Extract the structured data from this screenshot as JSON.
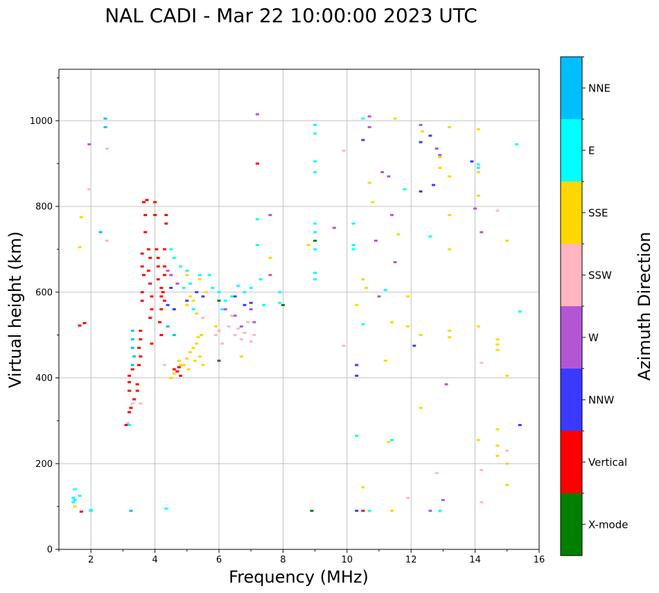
{
  "chart_data": {
    "type": "scatter",
    "title": "NAL CADI - Mar 22 10:00:00 2023 UTC",
    "xlabel": "Frequency (MHz)",
    "ylabel": "Virtual height (km)",
    "xlim": [
      1,
      16
    ],
    "ylim": [
      0,
      1120
    ],
    "xticks": [
      2,
      4,
      6,
      8,
      10,
      12,
      14,
      16
    ],
    "yticks": [
      0,
      200,
      400,
      600,
      800,
      1000
    ],
    "grid": true,
    "colorbar": {
      "label": "Azimuth Direction",
      "categories": [
        {
          "name": "X-mode",
          "color": "#008000"
        },
        {
          "name": "Vertical",
          "color": "#ff0000"
        },
        {
          "name": "NNW",
          "color": "#3a3aff"
        },
        {
          "name": "W",
          "color": "#b455d6"
        },
        {
          "name": "SSW",
          "color": "#ffb6c1"
        },
        {
          "name": "SSE",
          "color": "#ffd700"
        },
        {
          "name": "E",
          "color": "#00ffff"
        },
        {
          "name": "NNE",
          "color": "#00bfff"
        }
      ]
    },
    "series": [
      {
        "name": "X-mode",
        "points": [
          [
            6.0,
            440
          ],
          [
            6.0,
            580
          ],
          [
            8.9,
            90
          ],
          [
            9.0,
            720
          ],
          [
            8.0,
            570
          ]
        ]
      },
      {
        "name": "Vertical",
        "points": [
          [
            1.65,
            522
          ],
          [
            1.8,
            528
          ],
          [
            1.7,
            88
          ],
          [
            3.1,
            290
          ],
          [
            3.2,
            320
          ],
          [
            3.25,
            330
          ],
          [
            3.2,
            370
          ],
          [
            3.2,
            390
          ],
          [
            3.2,
            405
          ],
          [
            3.3,
            420
          ],
          [
            3.35,
            350
          ],
          [
            3.45,
            370
          ],
          [
            3.45,
            385
          ],
          [
            3.5,
            430
          ],
          [
            3.55,
            450
          ],
          [
            3.5,
            470
          ],
          [
            3.55,
            490
          ],
          [
            3.55,
            510
          ],
          [
            3.6,
            580
          ],
          [
            3.6,
            600
          ],
          [
            3.65,
            640
          ],
          [
            3.6,
            660
          ],
          [
            3.6,
            690
          ],
          [
            3.7,
            740
          ],
          [
            3.7,
            780
          ],
          [
            3.65,
            810
          ],
          [
            3.75,
            815
          ],
          [
            3.8,
            700
          ],
          [
            3.85,
            680
          ],
          [
            3.8,
            650
          ],
          [
            3.85,
            620
          ],
          [
            3.9,
            590
          ],
          [
            3.9,
            560
          ],
          [
            3.85,
            540
          ],
          [
            3.9,
            480
          ],
          [
            4.0,
            810
          ],
          [
            4.0,
            780
          ],
          [
            4.05,
            700
          ],
          [
            4.1,
            680
          ],
          [
            4.1,
            660
          ],
          [
            4.1,
            630
          ],
          [
            4.2,
            610
          ],
          [
            4.2,
            590
          ],
          [
            4.2,
            560
          ],
          [
            4.15,
            530
          ],
          [
            4.2,
            500
          ],
          [
            4.3,
            700
          ],
          [
            4.3,
            660
          ],
          [
            4.3,
            640
          ],
          [
            4.35,
            780
          ],
          [
            4.35,
            760
          ],
          [
            4.25,
            600
          ],
          [
            4.3,
            580
          ],
          [
            4.6,
            420
          ],
          [
            4.7,
            415
          ],
          [
            4.75,
            425
          ],
          [
            4.8,
            405
          ],
          [
            7.2,
            900
          ],
          [
            10.5,
            90
          ]
        ]
      },
      {
        "name": "NNW",
        "points": [
          [
            4.4,
            570
          ],
          [
            4.5,
            610
          ],
          [
            4.6,
            560
          ],
          [
            5.0,
            580
          ],
          [
            5.3,
            600
          ],
          [
            5.5,
            590
          ],
          [
            6.5,
            590
          ],
          [
            6.8,
            570
          ],
          [
            7.0,
            575
          ],
          [
            10.3,
            430
          ],
          [
            10.3,
            405
          ],
          [
            10.5,
            955
          ],
          [
            10.3,
            90
          ],
          [
            12.3,
            950
          ],
          [
            12.6,
            965
          ],
          [
            12.7,
            850
          ],
          [
            12.3,
            835
          ],
          [
            12.1,
            475
          ],
          [
            13.9,
            905
          ],
          [
            15.4,
            290
          ]
        ]
      },
      {
        "name": "W",
        "points": [
          [
            1.95,
            945
          ],
          [
            4.4,
            650
          ],
          [
            4.5,
            640
          ],
          [
            4.7,
            620
          ],
          [
            6.2,
            560
          ],
          [
            6.5,
            545
          ],
          [
            6.7,
            520
          ],
          [
            7.0,
            560
          ],
          [
            7.1,
            530
          ],
          [
            7.2,
            1015
          ],
          [
            7.6,
            640
          ],
          [
            7.6,
            780
          ],
          [
            9.6,
            750
          ],
          [
            10.7,
            1010
          ],
          [
            10.7,
            985
          ],
          [
            11.1,
            880
          ],
          [
            11.3,
            870
          ],
          [
            11.4,
            780
          ],
          [
            11.5,
            670
          ],
          [
            11.0,
            590
          ],
          [
            10.9,
            720
          ],
          [
            12.3,
            990
          ],
          [
            12.8,
            935
          ],
          [
            12.9,
            920
          ],
          [
            12.6,
            90
          ],
          [
            13.0,
            115
          ],
          [
            13.1,
            385
          ],
          [
            14.0,
            795
          ],
          [
            14.2,
            740
          ]
        ]
      },
      {
        "name": "SSW",
        "points": [
          [
            1.95,
            840
          ],
          [
            2.5,
            720
          ],
          [
            2.5,
            935
          ],
          [
            3.15,
            295
          ],
          [
            3.3,
            340
          ],
          [
            3.55,
            340
          ],
          [
            4.3,
            430
          ],
          [
            5.5,
            540
          ],
          [
            5.9,
            500
          ],
          [
            6.0,
            510
          ],
          [
            6.1,
            480
          ],
          [
            6.3,
            520
          ],
          [
            6.4,
            545
          ],
          [
            6.5,
            500
          ],
          [
            6.6,
            515
          ],
          [
            6.7,
            490
          ],
          [
            6.8,
            505
          ],
          [
            6.9,
            530
          ],
          [
            7.0,
            485
          ],
          [
            7.1,
            500
          ],
          [
            9.9,
            930
          ],
          [
            9.9,
            475
          ],
          [
            12.8,
            178
          ],
          [
            14.2,
            185
          ],
          [
            14.2,
            435
          ],
          [
            14.2,
            110
          ],
          [
            14.7,
            790
          ],
          [
            15.0,
            230
          ],
          [
            11.9,
            120
          ]
        ]
      },
      {
        "name": "SSE",
        "points": [
          [
            1.7,
            775
          ],
          [
            1.65,
            705
          ],
          [
            1.5,
            100
          ],
          [
            4.5,
            400
          ],
          [
            4.6,
            410
          ],
          [
            4.75,
            440
          ],
          [
            4.8,
            430
          ],
          [
            4.9,
            430
          ],
          [
            5.0,
            445
          ],
          [
            5.05,
            420
          ],
          [
            5.1,
            460
          ],
          [
            5.2,
            470
          ],
          [
            5.25,
            440
          ],
          [
            5.3,
            480
          ],
          [
            5.35,
            495
          ],
          [
            5.4,
            450
          ],
          [
            5.45,
            500
          ],
          [
            5.5,
            430
          ],
          [
            5.0,
            570
          ],
          [
            5.1,
            590
          ],
          [
            5.2,
            560
          ],
          [
            5.0,
            640
          ],
          [
            5.1,
            620
          ],
          [
            5.2,
            580
          ],
          [
            5.3,
            550
          ],
          [
            5.4,
            630
          ],
          [
            5.6,
            600
          ],
          [
            5.9,
            520
          ],
          [
            6.7,
            450
          ],
          [
            7.6,
            680
          ],
          [
            8.8,
            710
          ],
          [
            10.3,
            570
          ],
          [
            10.5,
            630
          ],
          [
            10.6,
            610
          ],
          [
            10.5,
            145
          ],
          [
            10.7,
            855
          ],
          [
            10.8,
            810
          ],
          [
            11.2,
            440
          ],
          [
            11.3,
            250
          ],
          [
            11.4,
            530
          ],
          [
            11.4,
            90
          ],
          [
            11.5,
            1005
          ],
          [
            11.6,
            735
          ],
          [
            11.9,
            520
          ],
          [
            11.9,
            590
          ],
          [
            12.3,
            500
          ],
          [
            12.3,
            330
          ],
          [
            12.35,
            975
          ],
          [
            12.9,
            890
          ],
          [
            12.9,
            915
          ],
          [
            13.2,
            870
          ],
          [
            13.2,
            780
          ],
          [
            13.2,
            700
          ],
          [
            13.2,
            510
          ],
          [
            13.2,
            495
          ],
          [
            13.2,
            985
          ],
          [
            14.1,
            980
          ],
          [
            14.1,
            880
          ],
          [
            14.1,
            825
          ],
          [
            14.1,
            255
          ],
          [
            14.1,
            520
          ],
          [
            14.7,
            280
          ],
          [
            14.7,
            490
          ],
          [
            14.7,
            478
          ],
          [
            14.7,
            465
          ],
          [
            14.7,
            242
          ],
          [
            14.7,
            218
          ],
          [
            15.0,
            720
          ],
          [
            15.0,
            405
          ],
          [
            15.0,
            200
          ],
          [
            15.0,
            150
          ]
        ]
      },
      {
        "name": "E",
        "points": [
          [
            1.5,
            140
          ],
          [
            1.45,
            110
          ],
          [
            1.5,
            115
          ],
          [
            1.45,
            120
          ],
          [
            1.65,
            125
          ],
          [
            2.0,
            90
          ],
          [
            2.0,
            92
          ],
          [
            3.2,
            290
          ],
          [
            4.35,
            95
          ],
          [
            4.5,
            700
          ],
          [
            4.6,
            680
          ],
          [
            4.8,
            660
          ],
          [
            5.0,
            650
          ],
          [
            4.9,
            610
          ],
          [
            5.1,
            620
          ],
          [
            5.2,
            560
          ],
          [
            5.4,
            640
          ],
          [
            5.7,
            640
          ],
          [
            5.8,
            610
          ],
          [
            6.0,
            600
          ],
          [
            6.1,
            560
          ],
          [
            6.2,
            580
          ],
          [
            6.4,
            590
          ],
          [
            6.6,
            615
          ],
          [
            6.8,
            600
          ],
          [
            7.0,
            610
          ],
          [
            7.2,
            770
          ],
          [
            7.2,
            710
          ],
          [
            7.3,
            630
          ],
          [
            7.4,
            570
          ],
          [
            7.9,
            575
          ],
          [
            7.9,
            600
          ],
          [
            9.0,
            990
          ],
          [
            9.0,
            970
          ],
          [
            9.0,
            905
          ],
          [
            9.0,
            880
          ],
          [
            9.0,
            760
          ],
          [
            9.0,
            740
          ],
          [
            9.0,
            700
          ],
          [
            9.0,
            645
          ],
          [
            9.0,
            630
          ],
          [
            10.2,
            710
          ],
          [
            10.2,
            700
          ],
          [
            10.2,
            760
          ],
          [
            10.3,
            265
          ],
          [
            10.5,
            1005
          ],
          [
            10.5,
            525
          ],
          [
            10.7,
            90
          ],
          [
            11.2,
            605
          ],
          [
            11.4,
            255
          ],
          [
            11.8,
            840
          ],
          [
            12.6,
            730
          ],
          [
            12.9,
            90
          ],
          [
            14.1,
            898
          ],
          [
            14.1,
            890
          ],
          [
            15.3,
            945
          ],
          [
            15.4,
            555
          ]
        ]
      },
      {
        "name": "NNE",
        "points": [
          [
            2.45,
            1005
          ],
          [
            2.45,
            985
          ],
          [
            2.3,
            740
          ],
          [
            3.25,
            90
          ],
          [
            3.3,
            510
          ],
          [
            3.3,
            490
          ],
          [
            3.3,
            470
          ],
          [
            3.35,
            450
          ],
          [
            3.3,
            430
          ],
          [
            4.4,
            520
          ],
          [
            4.6,
            500
          ]
        ]
      }
    ]
  }
}
